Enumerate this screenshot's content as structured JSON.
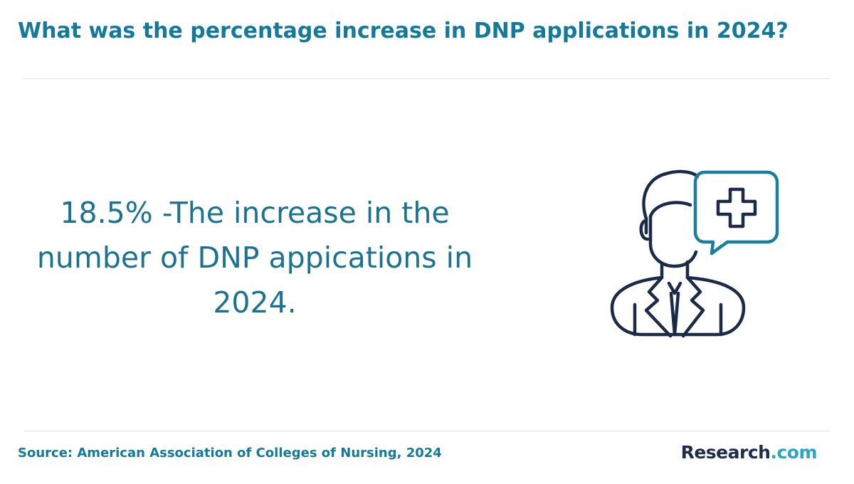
{
  "header": {
    "title": "What was the percentage increase in DNP applications in 2024?"
  },
  "stat": {
    "text": "18.5% -The increase in the number of DNP appications in 2024."
  },
  "illustration": {
    "icon": "doctor-with-medical-cross-speech-bubble-icon",
    "colors": {
      "figure": "#1b2b47",
      "bubble": "#1a7f9c"
    }
  },
  "footer": {
    "source": "Source: American Association of Colleges of Nursing, 2024",
    "logo_brand": "Research",
    "logo_tld": ".com"
  },
  "colors": {
    "title": "#157a9a",
    "stat": "#1b7390",
    "logo_brand": "#1c2d4f",
    "logo_tld": "#2ba6c4"
  }
}
